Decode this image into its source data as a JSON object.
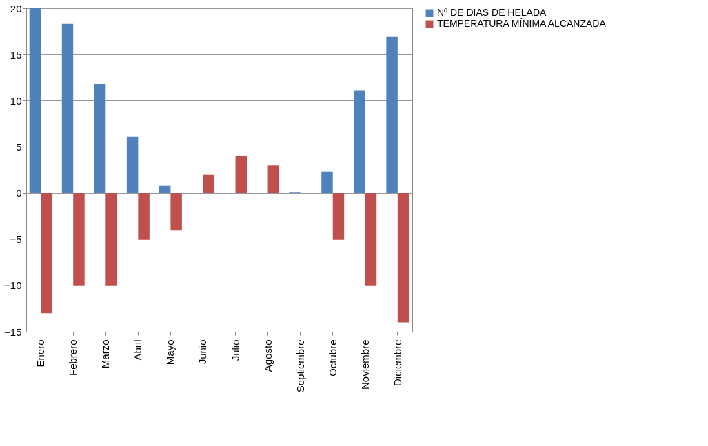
{
  "chart_data": {
    "type": "bar",
    "categories": [
      "Enero",
      "Febrero",
      "Marzo",
      "Abril",
      "Mayo",
      "Junio",
      "Julio",
      "Agosto",
      "Septiembre",
      "Octubre",
      "Noviembre",
      "Diciembre"
    ],
    "series": [
      {
        "name": "Nº DE DIAS DE HELADA",
        "color": "#4f81bd",
        "values": [
          20,
          18.3,
          11.8,
          6.1,
          0.8,
          0,
          0,
          0,
          0.1,
          2.3,
          11.1,
          16.9
        ]
      },
      {
        "name": "TEMPERATURA MÍNIMA ALCANZADA",
        "color": "#c0504d",
        "values": [
          -13,
          -10,
          -10,
          -5,
          -4,
          2,
          4,
          3,
          0,
          -5,
          -10,
          -14
        ]
      }
    ],
    "ylim": [
      -15,
      20
    ],
    "yticks": [
      -15,
      -10,
      -5,
      0,
      5,
      10,
      15,
      20
    ],
    "grid": "y",
    "legend": "right"
  }
}
